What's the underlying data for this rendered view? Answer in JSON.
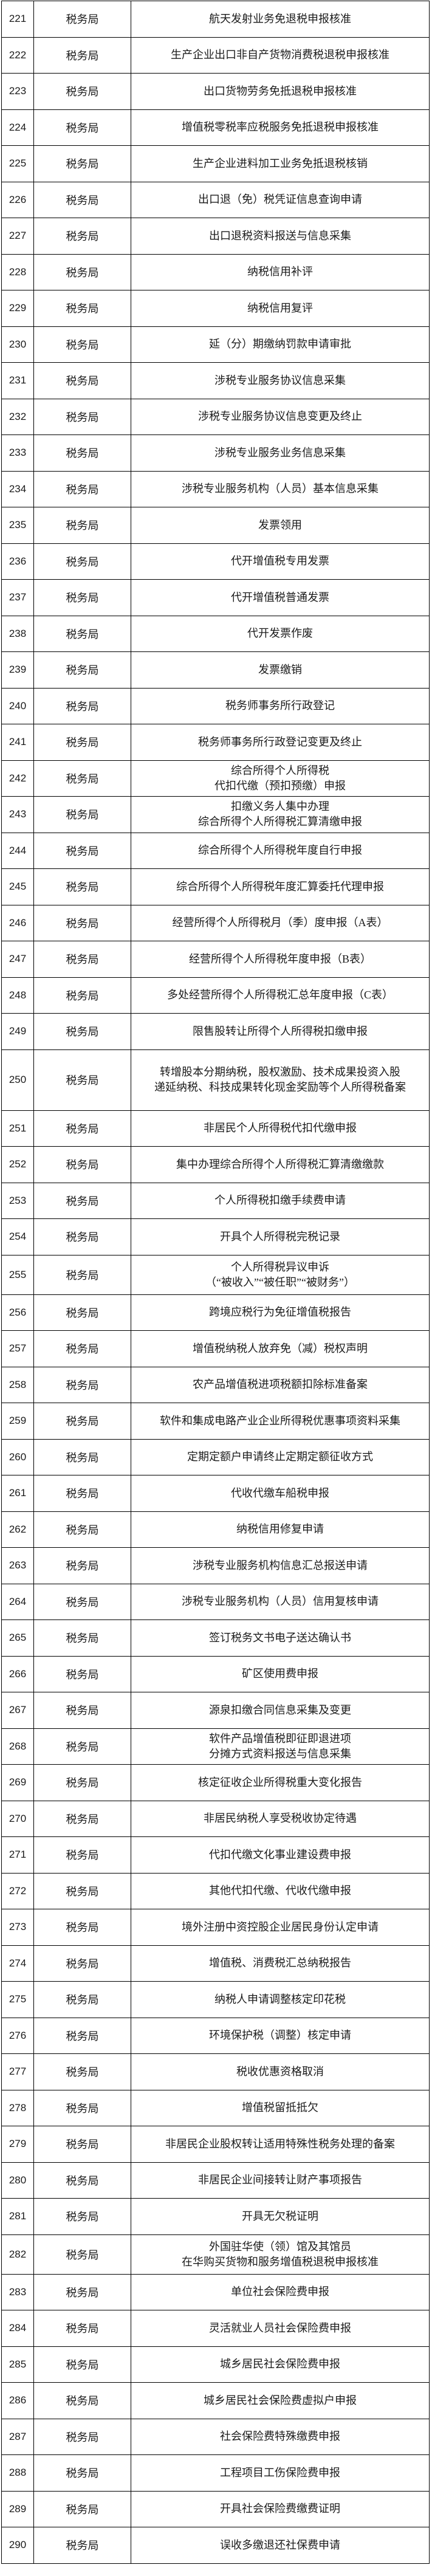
{
  "table": {
    "rows": [
      {
        "no": "221",
        "bureau": "税务局",
        "lines": [
          "航天发射业务免退税申报核准"
        ]
      },
      {
        "no": "222",
        "bureau": "税务局",
        "lines": [
          "生产企业出口非自产货物消费税退税申报核准"
        ]
      },
      {
        "no": "223",
        "bureau": "税务局",
        "lines": [
          "出口货物劳务免抵退税申报核准"
        ]
      },
      {
        "no": "224",
        "bureau": "税务局",
        "lines": [
          "增值税零税率应税服务免抵退税申报核准"
        ]
      },
      {
        "no": "225",
        "bureau": "税务局",
        "lines": [
          "生产企业进料加工业务免抵退税核销"
        ]
      },
      {
        "no": "226",
        "bureau": "税务局",
        "lines": [
          "出口退（免）税凭证信息查询申请"
        ]
      },
      {
        "no": "227",
        "bureau": "税务局",
        "lines": [
          "出口退税资料报送与信息采集"
        ]
      },
      {
        "no": "228",
        "bureau": "税务局",
        "lines": [
          "纳税信用补评"
        ]
      },
      {
        "no": "229",
        "bureau": "税务局",
        "lines": [
          "纳税信用复评"
        ]
      },
      {
        "no": "230",
        "bureau": "税务局",
        "lines": [
          "延（分）期缴纳罚款申请审批"
        ]
      },
      {
        "no": "231",
        "bureau": "税务局",
        "lines": [
          "涉税专业服务协议信息采集"
        ]
      },
      {
        "no": "232",
        "bureau": "税务局",
        "lines": [
          "涉税专业服务协议信息变更及终止"
        ]
      },
      {
        "no": "233",
        "bureau": "税务局",
        "lines": [
          "涉税专业服务业务信息采集"
        ]
      },
      {
        "no": "234",
        "bureau": "税务局",
        "lines": [
          "涉税专业服务机构（人员）基本信息采集"
        ]
      },
      {
        "no": "235",
        "bureau": "税务局",
        "lines": [
          "发票领用"
        ]
      },
      {
        "no": "236",
        "bureau": "税务局",
        "lines": [
          "代开增值税专用发票"
        ]
      },
      {
        "no": "237",
        "bureau": "税务局",
        "lines": [
          "代开增值税普通发票"
        ]
      },
      {
        "no": "238",
        "bureau": "税务局",
        "lines": [
          "代开发票作废"
        ]
      },
      {
        "no": "239",
        "bureau": "税务局",
        "lines": [
          "发票缴销"
        ]
      },
      {
        "no": "240",
        "bureau": "税务局",
        "lines": [
          "税务师事务所行政登记"
        ]
      },
      {
        "no": "241",
        "bureau": "税务局",
        "lines": [
          "税务师事务所行政登记变更及终止"
        ]
      },
      {
        "no": "242",
        "bureau": "税务局",
        "lines": [
          "综合所得个人所得税",
          "代扣代缴（预扣预缴）申报"
        ]
      },
      {
        "no": "243",
        "bureau": "税务局",
        "lines": [
          "扣缴义务人集中办理",
          "综合所得个人所得税汇算清缴申报"
        ]
      },
      {
        "no": "244",
        "bureau": "税务局",
        "lines": [
          "综合所得个人所得税年度自行申报"
        ]
      },
      {
        "no": "245",
        "bureau": "税务局",
        "lines": [
          "综合所得个人所得税年度汇算委托代理申报"
        ]
      },
      {
        "no": "246",
        "bureau": "税务局",
        "lines": [
          "经营所得个人所得税月（季）度申报（A表）"
        ]
      },
      {
        "no": "247",
        "bureau": "税务局",
        "lines": [
          "经营所得个人所得税年度申报（B表）"
        ]
      },
      {
        "no": "248",
        "bureau": "税务局",
        "lines": [
          "多处经营所得个人所得税汇总年度申报（C表）"
        ]
      },
      {
        "no": "249",
        "bureau": "税务局",
        "lines": [
          "限售股转让所得个人所得税扣缴申报"
        ]
      },
      {
        "no": "250",
        "bureau": "税务局",
        "lines": [
          "转增股本分期纳税，股权激励、技术成果投资入股",
          "递延纳税、科技成果转化现金奖励等个人所得税备案"
        ]
      },
      {
        "no": "251",
        "bureau": "税务局",
        "lines": [
          "非居民个人所得税代扣代缴申报"
        ]
      },
      {
        "no": "252",
        "bureau": "税务局",
        "lines": [
          "集中办理综合所得个人所得税汇算清缴缴款"
        ]
      },
      {
        "no": "253",
        "bureau": "税务局",
        "lines": [
          "个人所得税扣缴手续费申请"
        ]
      },
      {
        "no": "254",
        "bureau": "税务局",
        "lines": [
          "开具个人所得税完税记录"
        ]
      },
      {
        "no": "255",
        "bureau": "税务局",
        "lines": [
          "个人所得税异议申诉",
          "（“被收入”“被任职”“被财务”）"
        ]
      },
      {
        "no": "256",
        "bureau": "税务局",
        "lines": [
          "跨境应税行为免征增值税报告"
        ]
      },
      {
        "no": "257",
        "bureau": "税务局",
        "lines": [
          "增值税纳税人放弃免（减）税权声明"
        ]
      },
      {
        "no": "258",
        "bureau": "税务局",
        "lines": [
          "农产品增值税进项税额扣除标准备案"
        ]
      },
      {
        "no": "259",
        "bureau": "税务局",
        "lines": [
          "软件和集成电路产业企业所得税优惠事项资料采集"
        ]
      },
      {
        "no": "260",
        "bureau": "税务局",
        "lines": [
          "定期定额户申请终止定期定额征收方式"
        ]
      },
      {
        "no": "261",
        "bureau": "税务局",
        "lines": [
          "代收代缴车船税申报"
        ]
      },
      {
        "no": "262",
        "bureau": "税务局",
        "lines": [
          "纳税信用修复申请"
        ]
      },
      {
        "no": "263",
        "bureau": "税务局",
        "lines": [
          "涉税专业服务机构信息汇总报送申请"
        ]
      },
      {
        "no": "264",
        "bureau": "税务局",
        "lines": [
          "涉税专业服务机构（人员）信用复核申请"
        ]
      },
      {
        "no": "265",
        "bureau": "税务局",
        "lines": [
          "签订税务文书电子送达确认书"
        ]
      },
      {
        "no": "266",
        "bureau": "税务局",
        "lines": [
          "矿区使用费申报"
        ]
      },
      {
        "no": "267",
        "bureau": "税务局",
        "lines": [
          "源泉扣缴合同信息采集及变更"
        ]
      },
      {
        "no": "268",
        "bureau": "税务局",
        "lines": [
          "软件产品增值税即征即退进项",
          "分摊方式资料报送与信息采集"
        ]
      },
      {
        "no": "269",
        "bureau": "税务局",
        "lines": [
          "核定征收企业所得税重大变化报告"
        ]
      },
      {
        "no": "270",
        "bureau": "税务局",
        "lines": [
          "非居民纳税人享受税收协定待遇"
        ]
      },
      {
        "no": "271",
        "bureau": "税务局",
        "lines": [
          "代扣代缴文化事业建设费申报"
        ]
      },
      {
        "no": "272",
        "bureau": "税务局",
        "lines": [
          "其他代扣代缴、代收代缴申报"
        ]
      },
      {
        "no": "273",
        "bureau": "税务局",
        "lines": [
          "境外注册中资控股企业居民身份认定申请"
        ]
      },
      {
        "no": "274",
        "bureau": "税务局",
        "lines": [
          "增值税、消费税汇总纳税报告"
        ]
      },
      {
        "no": "275",
        "bureau": "税务局",
        "lines": [
          "纳税人申请调整核定印花税"
        ]
      },
      {
        "no": "276",
        "bureau": "税务局",
        "lines": [
          "环境保护税（调整）核定申请"
        ]
      },
      {
        "no": "277",
        "bureau": "税务局",
        "lines": [
          "税收优惠资格取消"
        ]
      },
      {
        "no": "278",
        "bureau": "税务局",
        "lines": [
          "增值税留抵抵欠"
        ]
      },
      {
        "no": "279",
        "bureau": "税务局",
        "lines": [
          "非居民企业股权转让适用特殊性税务处理的备案"
        ]
      },
      {
        "no": "280",
        "bureau": "税务局",
        "lines": [
          "非居民企业间接转让财产事项报告"
        ]
      },
      {
        "no": "281",
        "bureau": "税务局",
        "lines": [
          "开具无欠税证明"
        ]
      },
      {
        "no": "282",
        "bureau": "税务局",
        "lines": [
          "外国驻华使（领）馆及其馆员",
          "在华购买货物和服务增值税退税申报核准"
        ]
      },
      {
        "no": "283",
        "bureau": "税务局",
        "lines": [
          "单位社会保险费申报"
        ]
      },
      {
        "no": "284",
        "bureau": "税务局",
        "lines": [
          "灵活就业人员社会保险费申报"
        ]
      },
      {
        "no": "285",
        "bureau": "税务局",
        "lines": [
          "城乡居民社会保险费申报"
        ]
      },
      {
        "no": "286",
        "bureau": "税务局",
        "lines": [
          "城乡居民社会保险费虚拟户申报"
        ]
      },
      {
        "no": "287",
        "bureau": "税务局",
        "lines": [
          "社会保险费特殊缴费申报"
        ]
      },
      {
        "no": "288",
        "bureau": "税务局",
        "lines": [
          "工程项目工伤保险费申报"
        ]
      },
      {
        "no": "289",
        "bureau": "税务局",
        "lines": [
          "开具社会保险费缴费证明"
        ]
      },
      {
        "no": "290",
        "bureau": "税务局",
        "lines": [
          "误收多缴退还社保费申请"
        ]
      }
    ]
  }
}
